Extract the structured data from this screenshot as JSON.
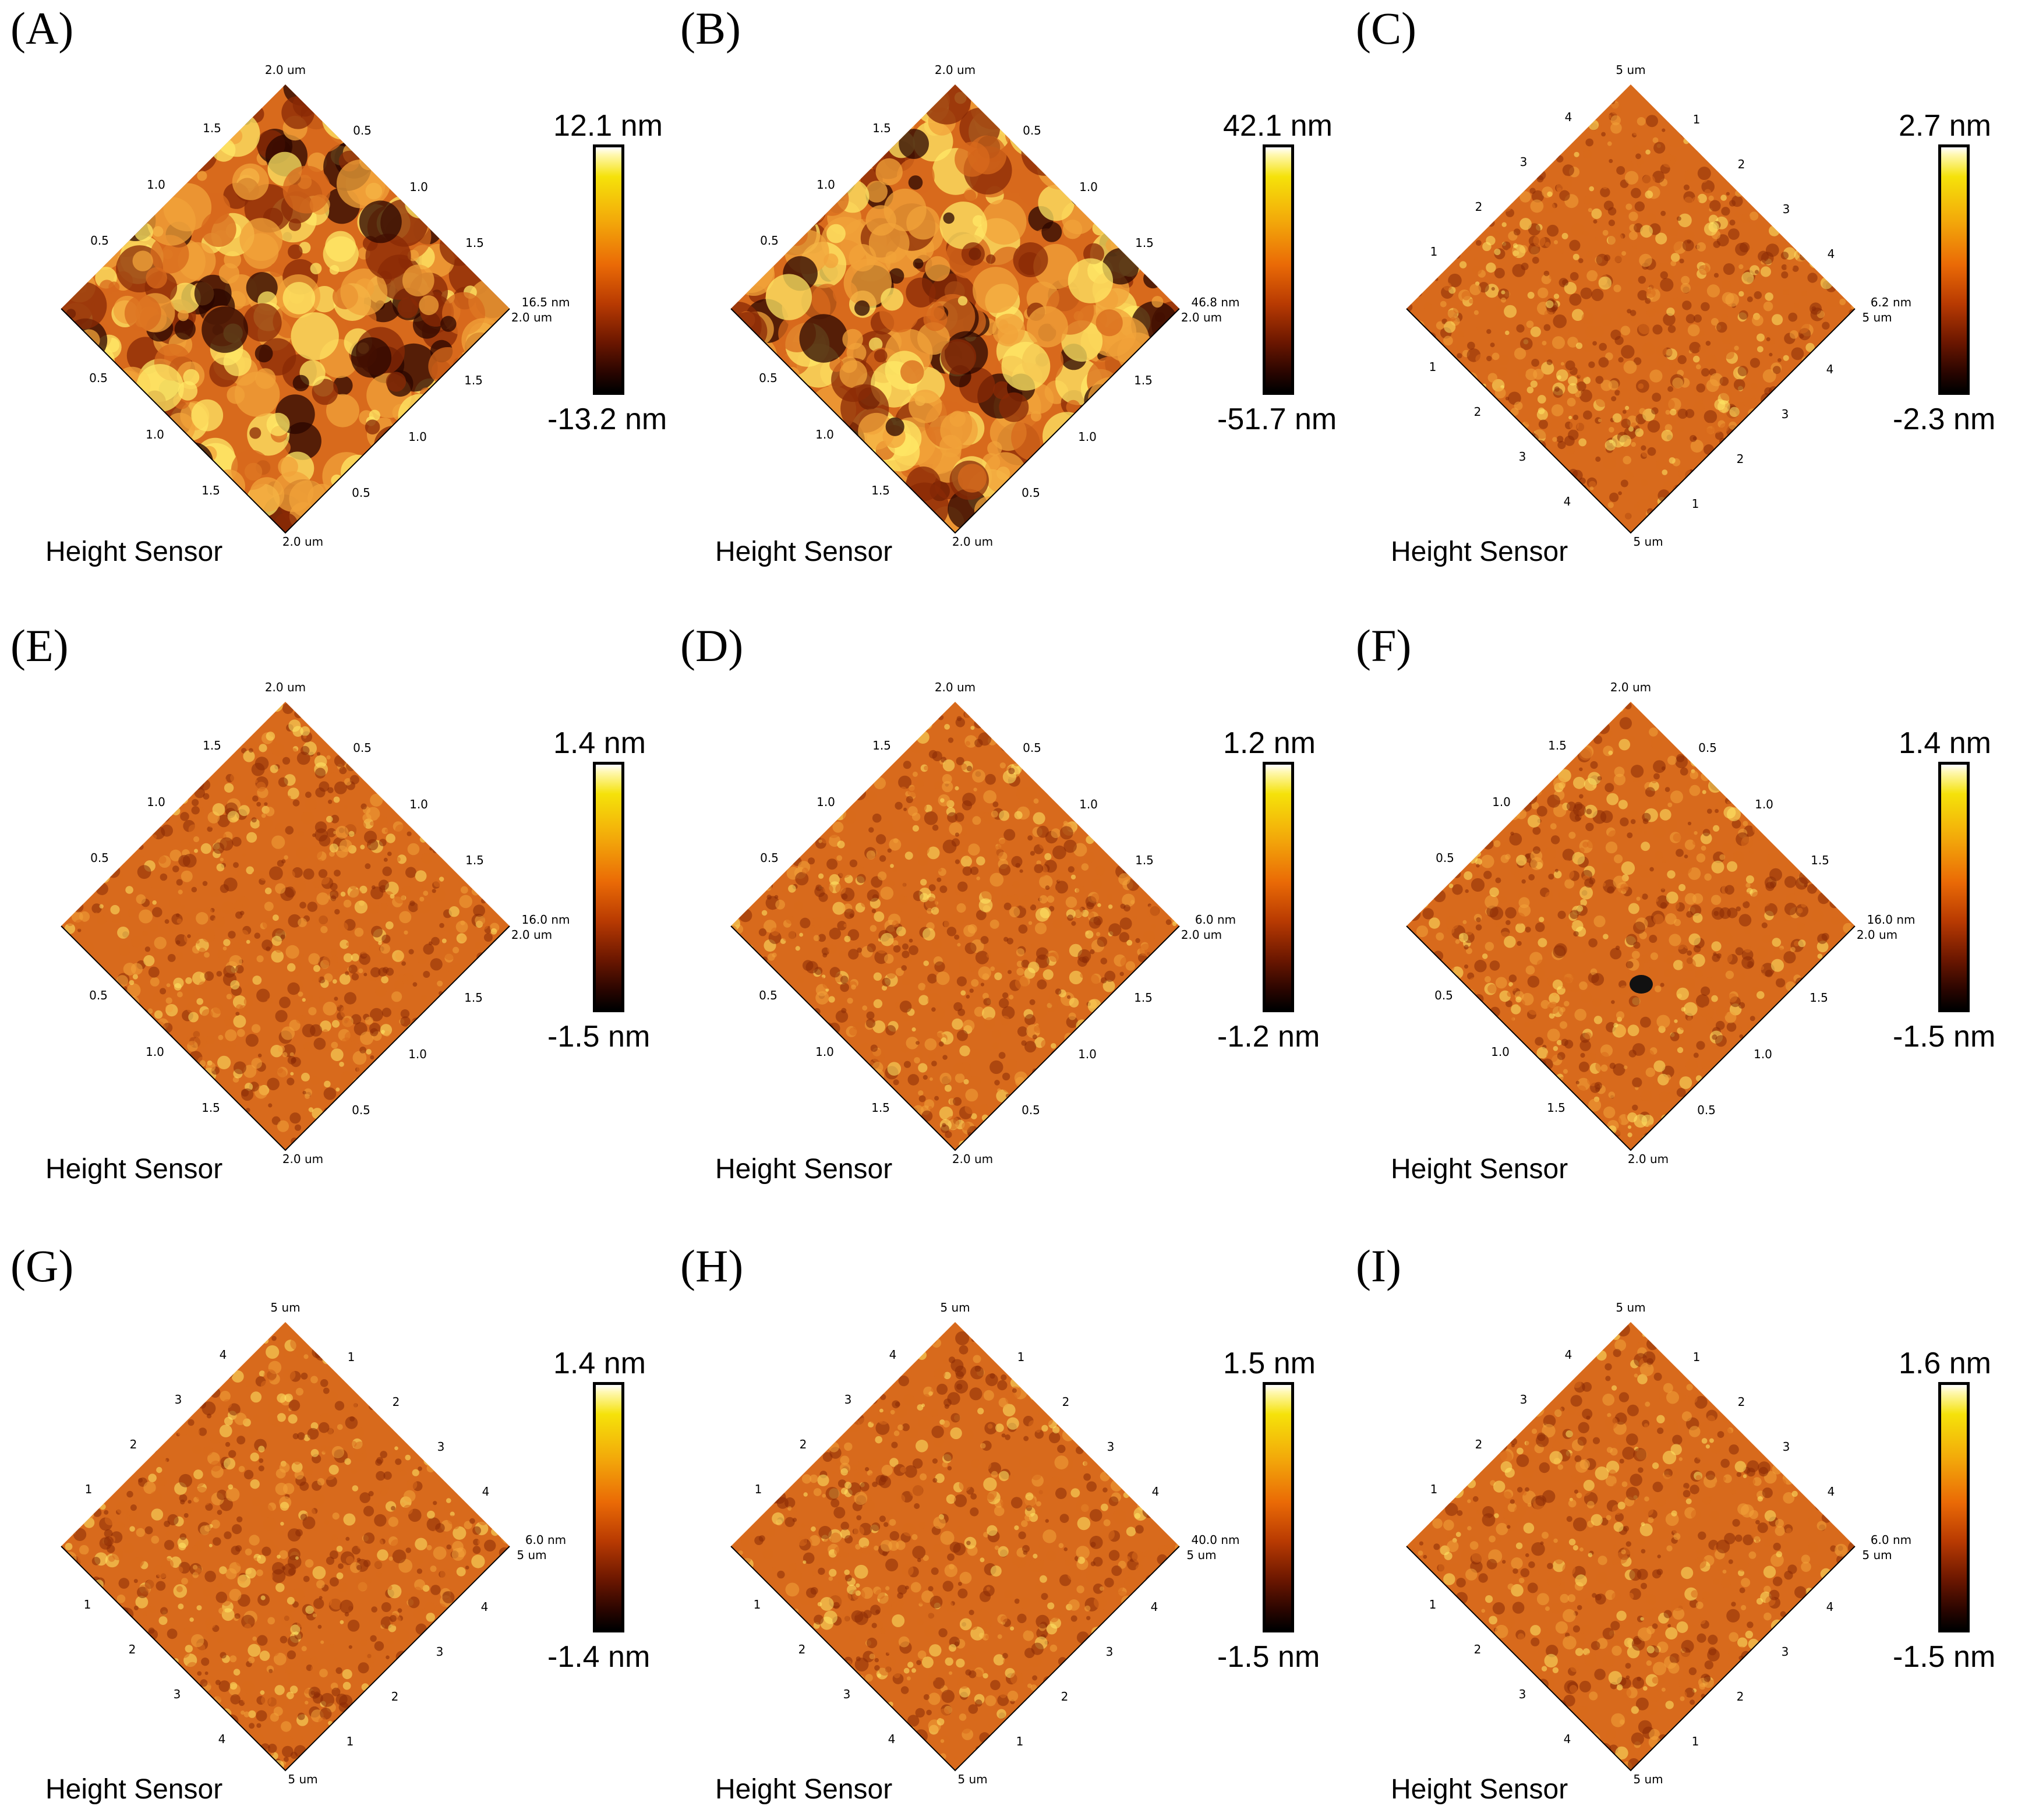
{
  "figure": {
    "colors": {
      "bright": "#ffe866",
      "light": "#f2a33a",
      "mid": "#d86a1c",
      "dark": "#8a2a06",
      "deep": "#2a0600"
    },
    "panels": [
      {
        "letter": "(A)",
        "label": "Height Sensor",
        "scale_max": "12.1 nm",
        "scale_min": "-13.2 nm",
        "axis": {
          "top": "2.0 um",
          "right": "2.0 um",
          "bottom": "2.0 um",
          "ul": [
            "1.5",
            "1.0",
            "0.5"
          ],
          "ur": [
            "0.5",
            "1.0",
            "1.5"
          ],
          "ll": [
            "0.5",
            "1.0",
            "1.5"
          ],
          "lr": [
            "0.5",
            "1.0",
            "1.5"
          ],
          "z_tag": "16.5 nm"
        }
      },
      {
        "letter": "(B)",
        "label": "Height Sensor",
        "scale_max": "42.1 nm",
        "scale_min": "-51.7 nm",
        "axis": {
          "top": "2.0 um",
          "right": "2.0 um",
          "bottom": "2.0 um",
          "ul": [
            "1.5",
            "1.0",
            "0.5"
          ],
          "ur": [
            "0.5",
            "1.0",
            "1.5"
          ],
          "ll": [
            "0.5",
            "1.0",
            "1.5"
          ],
          "lr": [
            "0.5",
            "1.0",
            "1.5"
          ],
          "z_tag": "46.8 nm"
        }
      },
      {
        "letter": "(C)",
        "label": "Height Sensor",
        "scale_max": "2.7 nm",
        "scale_min": "-2.3 nm",
        "axis": {
          "top": "5 um",
          "right": "5 um",
          "bottom": "5 um",
          "ul": [
            "4",
            "3",
            "2",
            "1"
          ],
          "ur": [
            "1",
            "2",
            "3",
            "4"
          ],
          "ll": [
            "1",
            "2",
            "3",
            "4"
          ],
          "lr": [
            "1",
            "2",
            "3",
            "4"
          ],
          "z_tag": "6.2 nm"
        }
      },
      {
        "letter": "(E)",
        "label": "Height Sensor",
        "scale_max": "1.4 nm",
        "scale_min": "-1.5 nm",
        "axis": {
          "top": "2.0 um",
          "right": "2.0 um",
          "bottom": "2.0 um",
          "ul": [
            "1.5",
            "1.0",
            "0.5"
          ],
          "ur": [
            "0.5",
            "1.0",
            "1.5"
          ],
          "ll": [
            "0.5",
            "1.0",
            "1.5"
          ],
          "lr": [
            "0.5",
            "1.0",
            "1.5"
          ],
          "z_tag": "16.0 nm"
        }
      },
      {
        "letter": "(D)",
        "label": "Height Sensor",
        "scale_max": "1.2 nm",
        "scale_min": "-1.2 nm",
        "axis": {
          "top": "2.0 um",
          "right": "2.0 um",
          "bottom": "2.0 um",
          "ul": [
            "1.5",
            "1.0",
            "0.5"
          ],
          "ur": [
            "0.5",
            "1.0",
            "1.5"
          ],
          "ll": [
            "0.5",
            "1.0",
            "1.5"
          ],
          "lr": [
            "0.5",
            "1.0",
            "1.5"
          ],
          "z_tag": "6.0 nm"
        }
      },
      {
        "letter": "(F)",
        "label": "Height Sensor",
        "scale_max": "1.4 nm",
        "scale_min": "-1.5 nm",
        "axis": {
          "top": "2.0 um",
          "right": "2.0 um",
          "bottom": "2.0 um",
          "ul": [
            "1.5",
            "1.0",
            "0.5"
          ],
          "ur": [
            "0.5",
            "1.0",
            "1.5"
          ],
          "ll": [
            "0.5",
            "1.0",
            "1.5"
          ],
          "lr": [
            "0.5",
            "1.0",
            "1.5"
          ],
          "z_tag": "16.0 nm"
        }
      },
      {
        "letter": "(G)",
        "label": "Height Sensor",
        "scale_max": "1.4 nm",
        "scale_min": "-1.4 nm",
        "axis": {
          "top": "5 um",
          "right": "5 um",
          "bottom": "5 um",
          "ul": [
            "4",
            "3",
            "2",
            "1"
          ],
          "ur": [
            "1",
            "2",
            "3",
            "4"
          ],
          "ll": [
            "1",
            "2",
            "3",
            "4"
          ],
          "lr": [
            "1",
            "2",
            "3",
            "4"
          ],
          "z_tag": "6.0 nm"
        }
      },
      {
        "letter": "(H)",
        "label": "Height Sensor",
        "scale_max": "1.5 nm",
        "scale_min": "-1.5 nm",
        "axis": {
          "top": "5 um",
          "right": "5 um",
          "bottom": "5 um",
          "ul": [
            "4",
            "3",
            "2",
            "1"
          ],
          "ur": [
            "1",
            "2",
            "3",
            "4"
          ],
          "ll": [
            "1",
            "2",
            "3",
            "4"
          ],
          "lr": [
            "1",
            "2",
            "3",
            "4"
          ],
          "z_tag": "40.0 nm"
        }
      },
      {
        "letter": "(I)",
        "label": "Height Sensor",
        "scale_max": "1.6 nm",
        "scale_min": "-1.5 nm",
        "axis": {
          "top": "5 um",
          "right": "5 um",
          "bottom": "5 um",
          "ul": [
            "4",
            "3",
            "2",
            "1"
          ],
          "ur": [
            "1",
            "2",
            "3",
            "4"
          ],
          "ll": [
            "1",
            "2",
            "3",
            "4"
          ],
          "lr": [
            "1",
            "2",
            "3",
            "4"
          ],
          "z_tag": "6.0 nm"
        }
      }
    ]
  }
}
